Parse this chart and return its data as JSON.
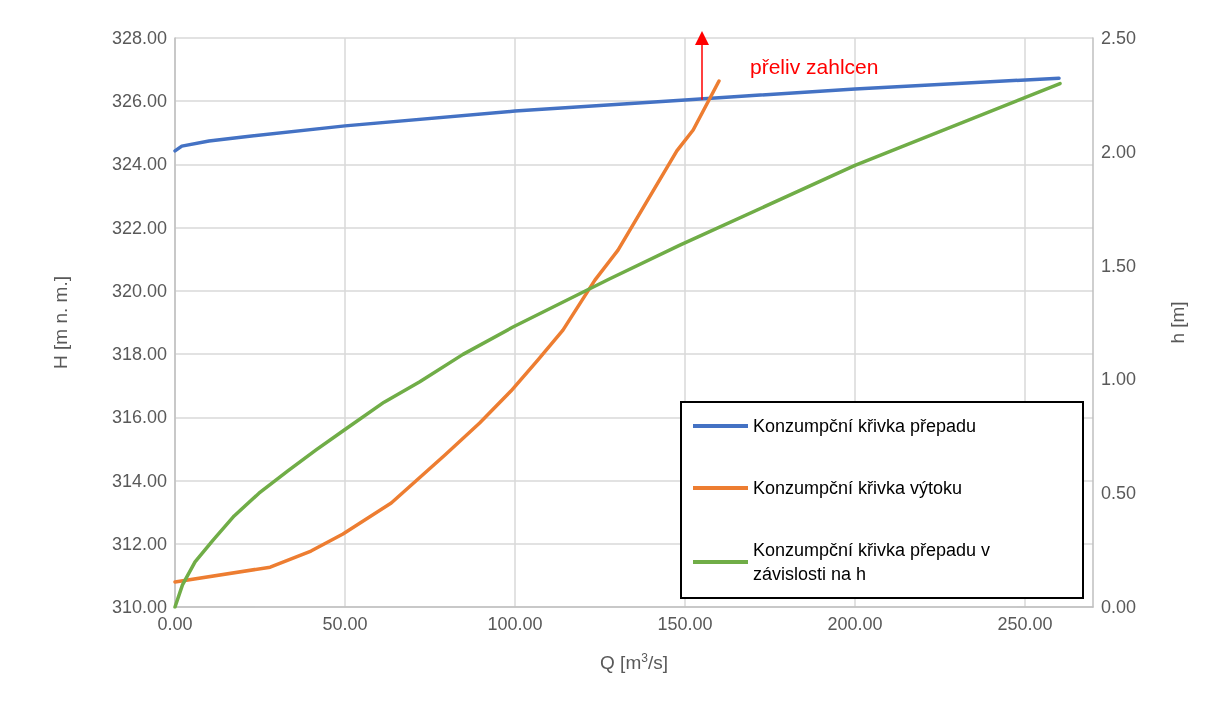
{
  "chart_data": {
    "type": "line",
    "xlabel": "Q [m$^{3}$/s]",
    "ylabel": "H [m n. m.]",
    "y2label": "h [m]",
    "xlim": [
      0,
      270
    ],
    "xticks": [
      {
        "value": 0,
        "label": "0.00"
      },
      {
        "value": 50,
        "label": "50.00"
      },
      {
        "value": 100,
        "label": "100.00"
      },
      {
        "value": 150,
        "label": "150.00"
      },
      {
        "value": 200,
        "label": "200.00"
      },
      {
        "value": 250,
        "label": "250.00"
      }
    ],
    "ylim": [
      310,
      328
    ],
    "yticks": [
      {
        "value": 310,
        "label": "310.00"
      },
      {
        "value": 312,
        "label": "312.00"
      },
      {
        "value": 314,
        "label": "314.00"
      },
      {
        "value": 316,
        "label": "316.00"
      },
      {
        "value": 318,
        "label": "318.00"
      },
      {
        "value": 320,
        "label": "320.00"
      },
      {
        "value": 322,
        "label": "322.00"
      },
      {
        "value": 324,
        "label": "324.00"
      },
      {
        "value": 326,
        "label": "326.00"
      },
      {
        "value": 328,
        "label": "328.00"
      }
    ],
    "y2lim": [
      0,
      2.5
    ],
    "y2ticks": [
      {
        "value": 0,
        "label": "0.00"
      },
      {
        "value": 0.5,
        "label": "0.50"
      },
      {
        "value": 1,
        "label": "1.00"
      },
      {
        "value": 1.5,
        "label": "1.50"
      },
      {
        "value": 2,
        "label": "2.00"
      },
      {
        "value": 2.5,
        "label": "2.50"
      }
    ],
    "grid": true,
    "legend": "bottom right",
    "marker": "none",
    "line_style": "solid",
    "annotations": [
      {
        "text": "přeliv zahlcen",
        "x": 155,
        "y": 326.05
      }
    ],
    "series": [
      {
        "name": "Konzumpční křivka přepadu",
        "color": "#4472c4",
        "x": [
          0,
          2,
          10,
          20,
          50,
          100,
          150,
          200,
          260
        ],
        "values": [
          324.43,
          324.58,
          324.74,
          324.87,
          325.22,
          325.69,
          326.04,
          326.39,
          326.73
        ]
      },
      {
        "name": "Konzumpční křivka výtoku",
        "color": "#ed7d31",
        "x": [
          0,
          28,
          40,
          49.4,
          63.6,
          79.4,
          89.6,
          98.8,
          106.7,
          114.1,
          123.5,
          130.3,
          147.6,
          152.4,
          160
        ],
        "values": [
          310.79,
          311.26,
          311.77,
          312.31,
          313.29,
          314.81,
          315.82,
          316.83,
          317.81,
          318.76,
          320.34,
          321.29,
          324.43,
          325.09,
          326.64
        ]
      },
      {
        "name": "Konzumpční křivka přepadu v závislosti na h",
        "color": "#70ad47",
        "axis": "y2",
        "x": [
          0,
          2.2,
          5.9,
          11.2,
          17.4,
          24.7,
          33.2,
          41.5,
          50,
          61.5,
          72,
          84.7,
          99.4,
          127.6,
          148.5,
          200,
          260.3
        ],
        "values": [
          0,
          0.097,
          0.198,
          0.294,
          0.4,
          0.5,
          0.598,
          0.69,
          0.78,
          0.9,
          0.99,
          1.11,
          1.23,
          1.44,
          1.59,
          1.94,
          2.3
        ]
      }
    ]
  }
}
